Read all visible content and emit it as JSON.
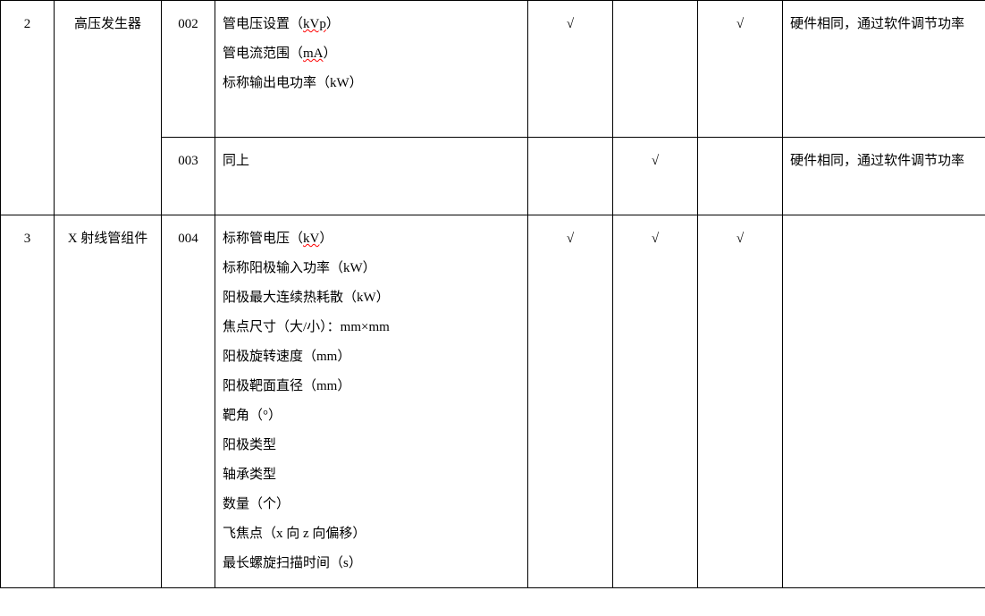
{
  "rows": [
    {
      "num": "2",
      "name": "高压发生器",
      "sub": [
        {
          "code": "002",
          "spec_lines": [
            {
              "pre": "管电压设置（",
              "mid": "kVp",
              "post": "）",
              "underline": true
            },
            {
              "pre": "管电流范围（",
              "mid": "mA",
              "post": "）",
              "underline": true
            },
            {
              "pre": "标称输出电功率（kW）",
              "mid": "",
              "post": "",
              "underline": false
            }
          ],
          "chk1": "√",
          "chk2": "",
          "chk3": "√",
          "note": "硬件相同，通过软件调节功率"
        },
        {
          "code": "003",
          "spec_lines": [
            {
              "pre": "同上",
              "mid": "",
              "post": "",
              "underline": false
            }
          ],
          "chk1": "",
          "chk2": "√",
          "chk3": "",
          "note": "硬件相同，通过软件调节功率"
        }
      ]
    },
    {
      "num": "3",
      "name": "X 射线管组件",
      "sub": [
        {
          "code": "004",
          "spec_lines": [
            {
              "pre": "标称管电压（",
              "mid": "kV",
              "post": "）",
              "underline": true
            },
            {
              "pre": "标称阳极输入功率（kW）",
              "mid": "",
              "post": "",
              "underline": false
            },
            {
              "pre": "阳极最大连续热耗散（kW）",
              "mid": "",
              "post": "",
              "underline": false
            },
            {
              "pre": "焦点尺寸（大/小）：mm×mm",
              "mid": "",
              "post": "",
              "underline": false
            },
            {
              "pre": "阳极旋转速度（mm）",
              "mid": "",
              "post": "",
              "underline": false
            },
            {
              "pre": "阳极靶面直径（mm）",
              "mid": "",
              "post": "",
              "underline": false
            },
            {
              "pre": "靶角（°）",
              "mid": "",
              "post": "",
              "underline": false
            },
            {
              "pre": "阳极类型",
              "mid": "",
              "post": "",
              "underline": false
            },
            {
              "pre": "轴承类型",
              "mid": "",
              "post": "",
              "underline": false
            },
            {
              "pre": "数量（个）",
              "mid": "",
              "post": "",
              "underline": false
            },
            {
              "pre": "飞焦点（x 向 z 向偏移）",
              "mid": "",
              "post": "",
              "underline": false
            },
            {
              "pre": "最长螺旋扫描时间（s）",
              "mid": "",
              "post": "",
              "underline": false
            }
          ],
          "chk1": "√",
          "chk2": "√",
          "chk3": "√",
          "note": ""
        }
      ]
    }
  ]
}
